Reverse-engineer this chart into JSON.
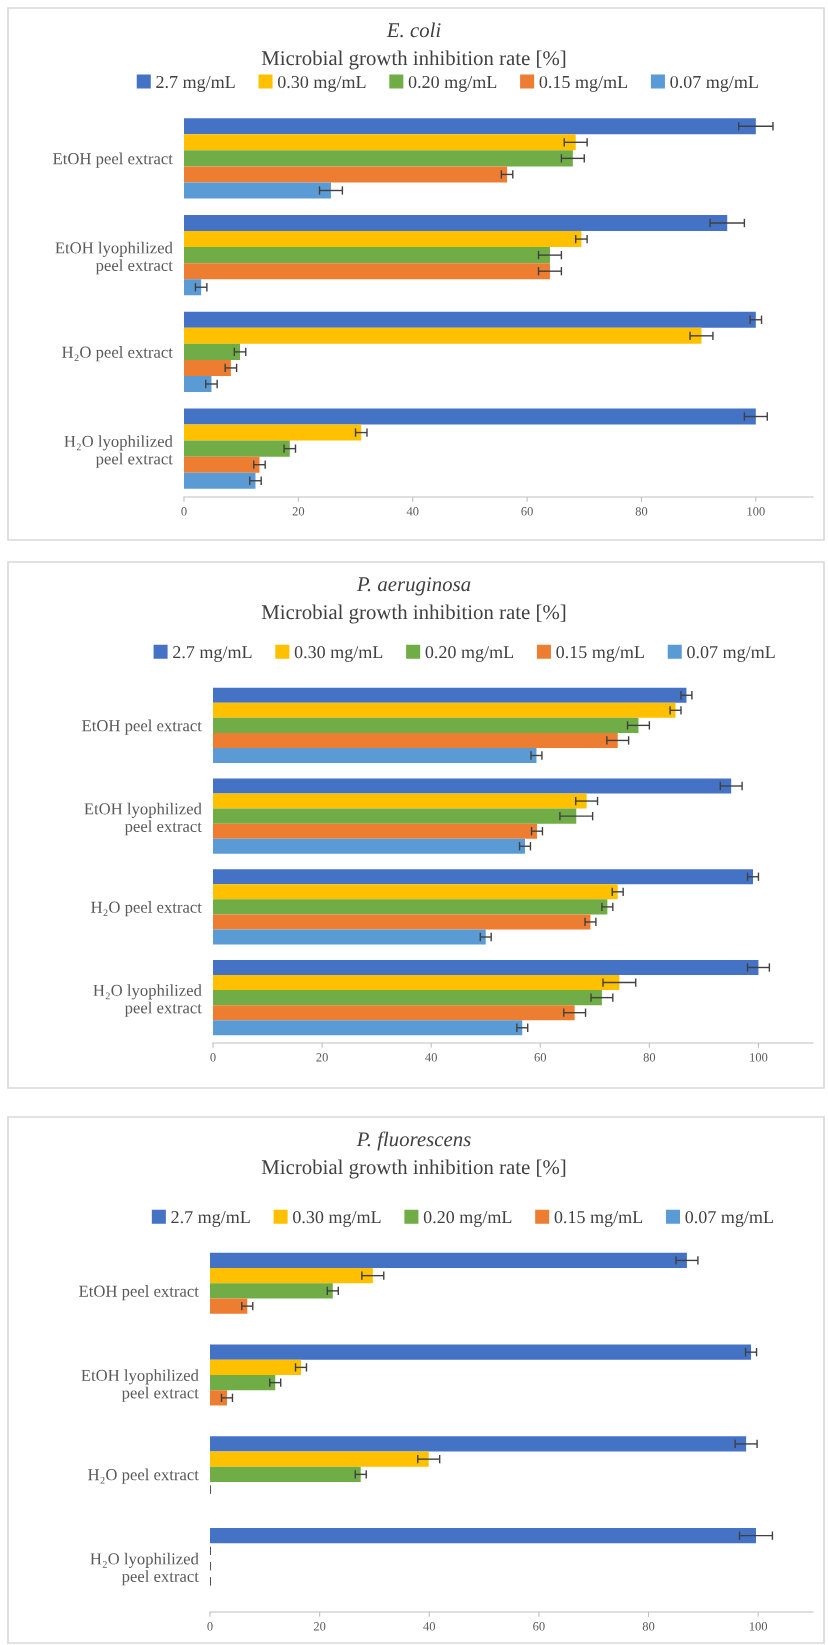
{
  "chart_data": [
    {
      "type": "bar",
      "orientation": "horizontal",
      "title": "E. coli",
      "subtitle": "Microbial growth inhibition rate [%]",
      "categories": [
        "EtOH peel extract",
        "EtOH lyophilized\npeel extract",
        "H₂O peel extract",
        "H₂O lyophilized\npeel extract"
      ],
      "xlim": [
        0,
        110
      ],
      "xticks": [
        0,
        20,
        40,
        60,
        80,
        100
      ],
      "grid": false,
      "legend": "top",
      "series": [
        {
          "name": "2.7 mg/mL",
          "color": "#4472c4",
          "values": [
            100,
            95,
            100,
            100
          ],
          "errors": [
            3,
            3,
            1,
            2
          ]
        },
        {
          "name": "0.30 mg/mL",
          "color": "#ffc000",
          "values": [
            68.5,
            69.5,
            90.5,
            31
          ],
          "errors": [
            2,
            1,
            2,
            1
          ]
        },
        {
          "name": "0.20 mg/mL",
          "color": "#70ad47",
          "values": [
            68,
            64,
            9.8,
            18.5
          ],
          "errors": [
            2,
            2,
            1,
            1
          ]
        },
        {
          "name": "0.15 mg/mL",
          "color": "#ed7d31",
          "values": [
            56.5,
            64,
            8.2,
            13.2
          ],
          "errors": [
            1,
            2,
            1,
            1
          ]
        },
        {
          "name": "0.07 mg/mL",
          "color": "#5b9bd5",
          "values": [
            25.7,
            3,
            4.8,
            12.5
          ],
          "errors": [
            2,
            1,
            1,
            1
          ]
        }
      ]
    },
    {
      "type": "bar",
      "orientation": "horizontal",
      "title": "P. aeruginosa",
      "subtitle": "Microbial growth inhibition rate [%]",
      "categories": [
        "EtOH peel extract",
        "EtOH lyophilized\npeel extract",
        "H₂O peel extract",
        "H₂O lyophilized\npeel extract"
      ],
      "xlim": [
        0,
        110
      ],
      "xticks": [
        0,
        20,
        40,
        60,
        80,
        100
      ],
      "grid": false,
      "legend": "top",
      "series": [
        {
          "name": "2.7 mg/mL",
          "color": "#4472c4",
          "values": [
            86.8,
            95,
            99,
            100
          ],
          "errors": [
            1,
            2,
            1,
            2
          ]
        },
        {
          "name": "0.30 mg/mL",
          "color": "#ffc000",
          "values": [
            84.8,
            68.5,
            74.2,
            74.5
          ],
          "errors": [
            1,
            2,
            1,
            3
          ]
        },
        {
          "name": "0.20 mg/mL",
          "color": "#70ad47",
          "values": [
            78,
            66.6,
            72.3,
            71.3
          ],
          "errors": [
            2,
            3,
            1,
            2
          ]
        },
        {
          "name": "0.15 mg/mL",
          "color": "#ed7d31",
          "values": [
            74.2,
            59.4,
            69.2,
            66.3
          ],
          "errors": [
            2,
            1,
            1,
            2
          ]
        },
        {
          "name": "0.07 mg/mL",
          "color": "#5b9bd5",
          "values": [
            59.3,
            57.2,
            50,
            56.7
          ],
          "errors": [
            1,
            1,
            1,
            1
          ]
        }
      ]
    },
    {
      "type": "bar",
      "orientation": "horizontal",
      "title": "P. fluorescens",
      "subtitle": "Microbial growth inhibition rate [%]",
      "categories": [
        "EtOH peel extract",
        "EtOH lyophilized\npeel extract",
        "H₂O peel extract",
        "H₂O lyophilized\npeel extract"
      ],
      "xlim": [
        0,
        110
      ],
      "xticks": [
        0,
        20,
        40,
        60,
        80,
        100
      ],
      "grid": false,
      "legend": "top",
      "series": [
        {
          "name": "2.7 mg/mL",
          "color": "#4472c4",
          "values": [
            87,
            98.7,
            97.8,
            99.6
          ],
          "errors": [
            2,
            1,
            2,
            3
          ]
        },
        {
          "name": "0.30 mg/mL",
          "color": "#ffc000",
          "values": [
            29.7,
            16.6,
            39.9,
            0
          ],
          "errors": [
            2,
            1,
            2,
            0
          ]
        },
        {
          "name": "0.20 mg/mL",
          "color": "#70ad47",
          "values": [
            22.4,
            11.9,
            27.5,
            0
          ],
          "errors": [
            1,
            1,
            1,
            0
          ]
        },
        {
          "name": "0.15 mg/mL",
          "color": "#ed7d31",
          "values": [
            6.8,
            3.1,
            0,
            0
          ],
          "errors": [
            1,
            1,
            0,
            0
          ]
        },
        {
          "name": "0.07 mg/mL",
          "color": "#5b9bd5",
          "values": [
            null,
            null,
            null,
            null
          ],
          "errors": [
            null,
            null,
            null,
            null
          ]
        }
      ]
    }
  ]
}
